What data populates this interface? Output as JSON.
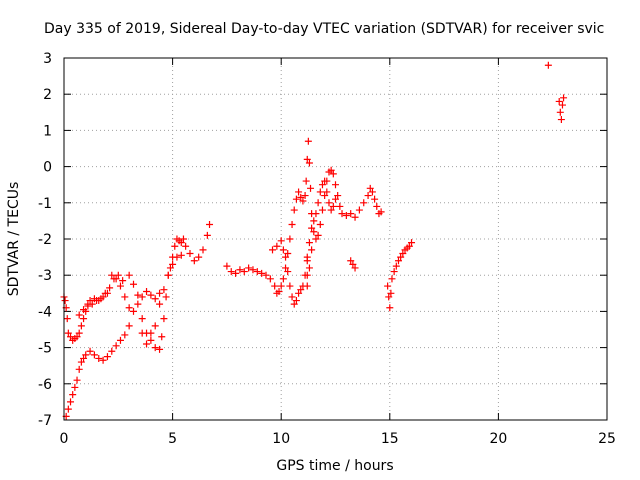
{
  "chart_data": {
    "type": "scatter",
    "title": "Day 335 of 2019, Sidereal Day-to-day VTEC variation (SDTVAR) for receiver svic",
    "xlabel": "GPS time / hours",
    "ylabel": "SDTVAR / TECUs",
    "xlim": [
      0,
      25
    ],
    "ylim": [
      -7,
      3
    ],
    "xticks": [
      0,
      5,
      10,
      15,
      20,
      25
    ],
    "yticks": [
      -7,
      -6,
      -5,
      -4,
      -3,
      -2,
      -1,
      0,
      1,
      2,
      3
    ],
    "grid": true,
    "marker": "+",
    "color": "#ff0000",
    "series": [
      {
        "name": "svic",
        "points": [
          [
            0.0,
            -3.6
          ],
          [
            0.05,
            -3.7
          ],
          [
            0.1,
            -3.9
          ],
          [
            0.15,
            -4.2
          ],
          [
            0.2,
            -4.6
          ],
          [
            0.3,
            -4.7
          ],
          [
            0.4,
            -4.8
          ],
          [
            0.5,
            -4.75
          ],
          [
            0.6,
            -4.7
          ],
          [
            0.7,
            -4.6
          ],
          [
            0.8,
            -4.4
          ],
          [
            0.9,
            -4.2
          ],
          [
            1.0,
            -4.0
          ],
          [
            1.1,
            -3.8
          ],
          [
            1.2,
            -3.7
          ],
          [
            1.4,
            -3.65
          ],
          [
            1.6,
            -3.7
          ],
          [
            1.8,
            -3.6
          ],
          [
            2.0,
            -3.5
          ],
          [
            2.2,
            -3.0
          ],
          [
            2.4,
            -3.1
          ],
          [
            2.6,
            -3.3
          ],
          [
            2.8,
            -3.6
          ],
          [
            3.0,
            -3.9
          ],
          [
            3.2,
            -4.0
          ],
          [
            3.4,
            -3.8
          ],
          [
            3.6,
            -4.2
          ],
          [
            3.8,
            -4.6
          ],
          [
            4.0,
            -4.8
          ],
          [
            4.2,
            -5.0
          ],
          [
            4.4,
            -5.05
          ],
          [
            4.5,
            -4.7
          ],
          [
            4.6,
            -4.2
          ],
          [
            4.7,
            -3.6
          ],
          [
            4.8,
            -3.0
          ],
          [
            4.9,
            -2.8
          ],
          [
            5.0,
            -2.5
          ],
          [
            5.1,
            -2.2
          ],
          [
            5.2,
            -2.0
          ],
          [
            5.3,
            -2.05
          ],
          [
            5.4,
            -2.1
          ],
          [
            5.5,
            -2.0
          ],
          [
            5.6,
            -2.2
          ],
          [
            5.8,
            -2.4
          ],
          [
            6.0,
            -2.6
          ],
          [
            6.2,
            -2.5
          ],
          [
            6.4,
            -2.3
          ],
          [
            6.6,
            -1.9
          ],
          [
            6.7,
            -1.6
          ],
          [
            0.1,
            -6.9
          ],
          [
            0.2,
            -6.7
          ],
          [
            0.3,
            -6.5
          ],
          [
            0.4,
            -6.3
          ],
          [
            0.5,
            -6.1
          ],
          [
            0.6,
            -5.9
          ],
          [
            0.7,
            -5.6
          ],
          [
            0.8,
            -5.4
          ],
          [
            0.9,
            -5.3
          ],
          [
            1.0,
            -5.2
          ],
          [
            1.2,
            -5.1
          ],
          [
            1.4,
            -5.2
          ],
          [
            1.6,
            -5.3
          ],
          [
            1.8,
            -5.35
          ],
          [
            2.0,
            -5.25
          ],
          [
            2.2,
            -5.1
          ],
          [
            2.4,
            -4.95
          ],
          [
            2.6,
            -4.8
          ],
          [
            2.8,
            -4.65
          ],
          [
            0.7,
            -4.1
          ],
          [
            0.9,
            -3.95
          ],
          [
            1.1,
            -3.85
          ],
          [
            1.3,
            -3.8
          ],
          [
            1.5,
            -3.7
          ],
          [
            1.7,
            -3.65
          ],
          [
            1.9,
            -3.5
          ],
          [
            2.1,
            -3.35
          ],
          [
            2.3,
            -3.1
          ],
          [
            2.5,
            -3.0
          ],
          [
            2.7,
            -3.15
          ],
          [
            3.0,
            -3.0
          ],
          [
            3.2,
            -3.25
          ],
          [
            3.4,
            -3.55
          ],
          [
            3.6,
            -3.6
          ],
          [
            3.8,
            -3.45
          ],
          [
            4.0,
            -3.55
          ],
          [
            4.2,
            -3.65
          ],
          [
            4.4,
            -3.5
          ],
          [
            4.6,
            -3.4
          ],
          [
            4.8,
            -3.0
          ],
          [
            5.0,
            -2.7
          ],
          [
            5.2,
            -2.5
          ],
          [
            5.4,
            -2.45
          ],
          [
            3.0,
            -4.4
          ],
          [
            3.6,
            -4.6
          ],
          [
            3.8,
            -4.9
          ],
          [
            4.0,
            -4.6
          ],
          [
            4.2,
            -4.4
          ],
          [
            4.4,
            -3.8
          ],
          [
            7.5,
            -2.75
          ],
          [
            7.7,
            -2.9
          ],
          [
            7.9,
            -2.95
          ],
          [
            8.1,
            -2.85
          ],
          [
            8.3,
            -2.9
          ],
          [
            8.5,
            -2.8
          ],
          [
            8.7,
            -2.85
          ],
          [
            8.9,
            -2.9
          ],
          [
            9.1,
            -2.95
          ],
          [
            9.3,
            -3.0
          ],
          [
            9.5,
            -3.1
          ],
          [
            9.7,
            -3.3
          ],
          [
            9.8,
            -3.5
          ],
          [
            9.9,
            -3.45
          ],
          [
            10.0,
            -3.3
          ],
          [
            10.1,
            -3.1
          ],
          [
            10.2,
            -2.8
          ],
          [
            10.3,
            -2.4
          ],
          [
            10.4,
            -2.0
          ],
          [
            10.5,
            -1.6
          ],
          [
            10.6,
            -1.2
          ],
          [
            10.7,
            -0.9
          ],
          [
            10.8,
            -0.7
          ],
          [
            10.9,
            -0.85
          ],
          [
            11.0,
            -0.95
          ],
          [
            11.1,
            -0.8
          ],
          [
            11.15,
            -0.4
          ],
          [
            11.2,
            0.2
          ],
          [
            11.25,
            0.7
          ],
          [
            11.3,
            0.1
          ],
          [
            11.35,
            -0.6
          ],
          [
            11.4,
            -1.3
          ],
          [
            11.5,
            -1.8
          ],
          [
            11.6,
            -2.0
          ],
          [
            11.7,
            -1.9
          ],
          [
            11.8,
            -1.6
          ],
          [
            11.9,
            -1.2
          ],
          [
            12.0,
            -0.8
          ],
          [
            12.1,
            -0.4
          ],
          [
            12.2,
            -0.15
          ],
          [
            12.3,
            -0.1
          ],
          [
            12.4,
            -0.2
          ],
          [
            12.5,
            -0.5
          ],
          [
            12.6,
            -0.8
          ],
          [
            12.7,
            -1.1
          ],
          [
            12.8,
            -1.3
          ],
          [
            13.0,
            -1.35
          ],
          [
            13.2,
            -1.3
          ],
          [
            13.4,
            -1.4
          ],
          [
            13.6,
            -1.2
          ],
          [
            13.8,
            -1.0
          ],
          [
            14.0,
            -0.8
          ],
          [
            14.1,
            -0.6
          ],
          [
            14.2,
            -0.7
          ],
          [
            14.3,
            -0.9
          ],
          [
            14.4,
            -1.1
          ],
          [
            14.5,
            -1.3
          ],
          [
            14.6,
            -1.25
          ],
          [
            9.6,
            -2.3
          ],
          [
            9.8,
            -2.2
          ],
          [
            10.0,
            -2.05
          ],
          [
            10.1,
            -2.3
          ],
          [
            10.2,
            -2.5
          ],
          [
            10.3,
            -2.9
          ],
          [
            10.4,
            -3.3
          ],
          [
            10.5,
            -3.6
          ],
          [
            10.6,
            -3.8
          ],
          [
            10.7,
            -3.7
          ],
          [
            10.8,
            -3.5
          ],
          [
            10.9,
            -3.4
          ],
          [
            11.0,
            -3.3
          ],
          [
            11.1,
            -3.0
          ],
          [
            11.2,
            -2.6
          ],
          [
            11.3,
            -2.1
          ],
          [
            11.4,
            -1.7
          ],
          [
            11.5,
            -1.5
          ],
          [
            11.6,
            -1.3
          ],
          [
            11.7,
            -1.0
          ],
          [
            11.8,
            -0.7
          ],
          [
            11.9,
            -0.5
          ],
          [
            12.0,
            -0.4
          ],
          [
            12.1,
            -0.7
          ],
          [
            12.2,
            -1.0
          ],
          [
            12.3,
            -1.2
          ],
          [
            12.4,
            -1.1
          ],
          [
            12.5,
            -0.9
          ],
          [
            11.2,
            -2.5
          ],
          [
            11.2,
            -3.0
          ],
          [
            11.2,
            -3.3
          ],
          [
            11.3,
            -2.8
          ],
          [
            11.4,
            -2.3
          ],
          [
            13.2,
            -2.6
          ],
          [
            13.3,
            -2.7
          ],
          [
            13.4,
            -2.8
          ],
          [
            14.9,
            -3.3
          ],
          [
            14.95,
            -3.6
          ],
          [
            15.0,
            -3.9
          ],
          [
            15.05,
            -3.5
          ],
          [
            15.1,
            -3.1
          ],
          [
            15.2,
            -2.9
          ],
          [
            15.3,
            -2.75
          ],
          [
            15.4,
            -2.6
          ],
          [
            15.5,
            -2.5
          ],
          [
            15.6,
            -2.4
          ],
          [
            15.7,
            -2.3
          ],
          [
            15.8,
            -2.25
          ],
          [
            15.9,
            -2.2
          ],
          [
            16.0,
            -2.1
          ],
          [
            22.3,
            2.8
          ],
          [
            22.8,
            1.8
          ],
          [
            22.85,
            1.5
          ],
          [
            22.9,
            1.3
          ],
          [
            22.95,
            1.7
          ],
          [
            23.0,
            1.9
          ]
        ]
      }
    ]
  }
}
